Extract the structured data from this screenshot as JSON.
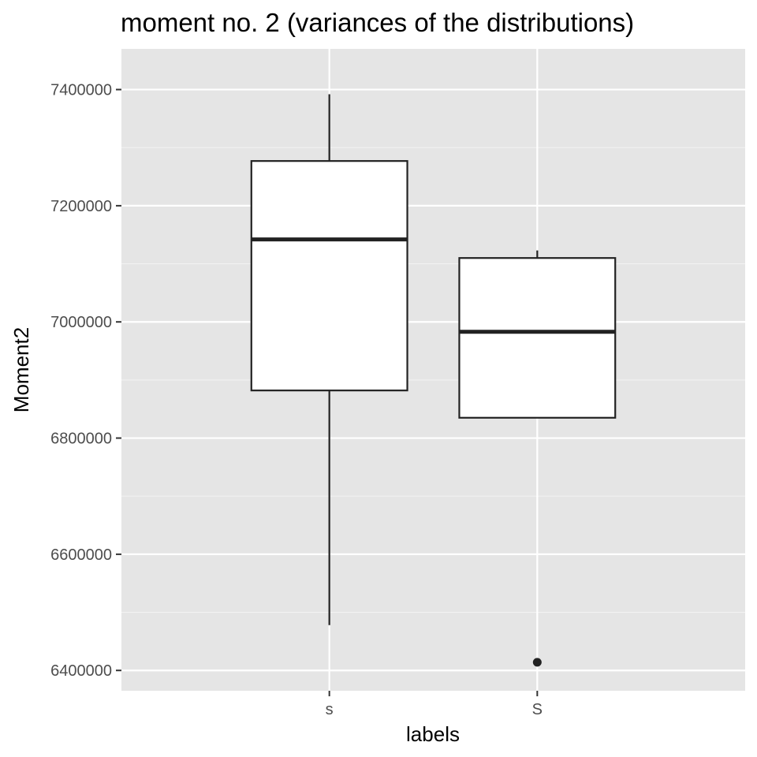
{
  "chart_data": {
    "type": "boxplot",
    "title": "moment no. 2 (variances of the distributions)",
    "xlabel": "labels",
    "ylabel": "Moment2",
    "ylim": [
      6365000,
      7470000
    ],
    "yticks": [
      6400000,
      6600000,
      6800000,
      7000000,
      7200000,
      7400000
    ],
    "ytick_labels": [
      "6400000",
      "6600000",
      "6800000",
      "7000000",
      "7200000",
      "7400000"
    ],
    "grid": true,
    "panel_color": "#e5e5e5",
    "box_fill": "#ffffff",
    "line_color": "#222222",
    "categories": [
      "s",
      "S"
    ],
    "boxes": [
      {
        "label": "s",
        "whisker_low": 6478000,
        "q1": 6882000,
        "median": 7142000,
        "q3": 7277000,
        "whisker_high": 7392000,
        "outliers": []
      },
      {
        "label": "S",
        "whisker_low": 6835000,
        "q1": 6835000,
        "median": 6983000,
        "q3": 7110000,
        "whisker_high": 7123000,
        "outliers": [
          6414000
        ]
      }
    ]
  }
}
